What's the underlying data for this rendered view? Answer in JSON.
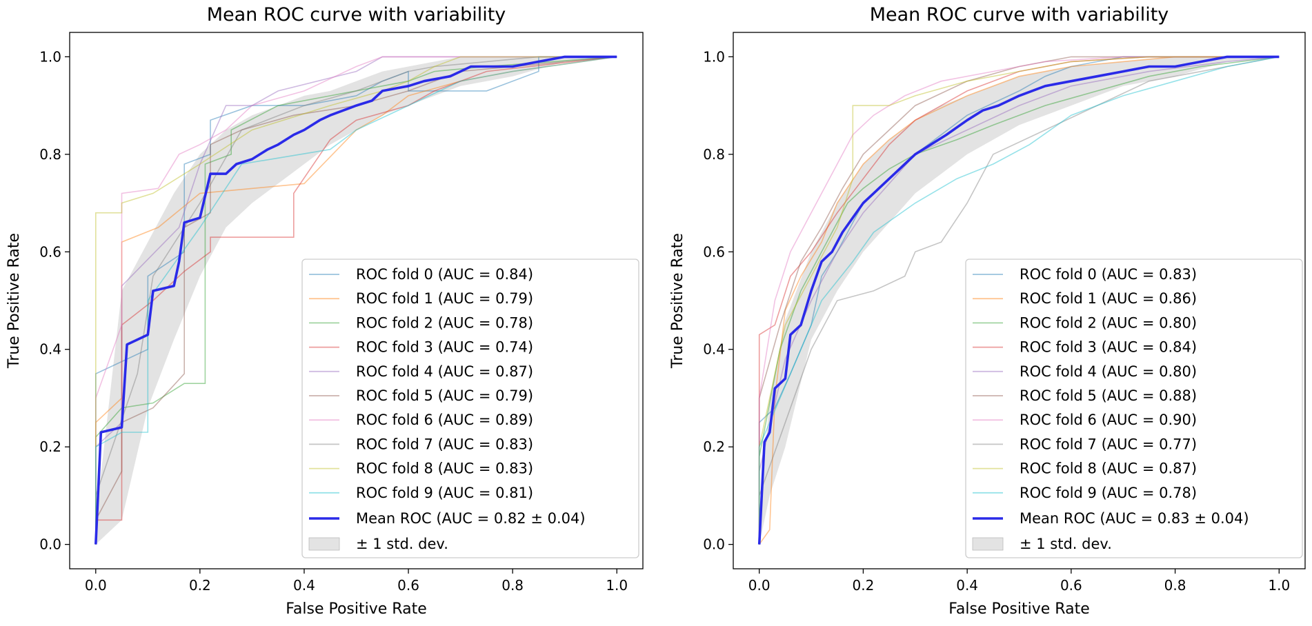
{
  "chart_data": [
    {
      "type": "line",
      "title": "Mean ROC curve with variability",
      "xlabel": "False Positive Rate",
      "ylabel": "True Positive Rate",
      "xlim": [
        -0.05,
        1.05
      ],
      "ylim": [
        -0.05,
        1.05
      ],
      "xticks": [
        "0.0",
        "0.2",
        "0.4",
        "0.6",
        "0.8",
        "1.0"
      ],
      "yticks": [
        "0.0",
        "0.2",
        "0.4",
        "0.6",
        "0.8",
        "1.0"
      ],
      "legend_position": "lower-right",
      "series": [
        {
          "name": "ROC fold 0 (AUC = 0.84)",
          "color": "#1f77b4",
          "x": [
            0,
            0,
            0.1,
            0.1,
            0.17,
            0.17,
            0.22,
            0.22,
            0.3,
            0.4,
            0.5,
            0.55,
            0.6,
            0.6,
            0.75,
            0.85,
            0.85,
            1.0
          ],
          "y": [
            0,
            0.35,
            0.4,
            0.55,
            0.6,
            0.78,
            0.8,
            0.87,
            0.9,
            0.9,
            0.92,
            0.95,
            0.97,
            0.93,
            0.93,
            0.97,
            1.0,
            1.0
          ]
        },
        {
          "name": "ROC fold 1 (AUC = 0.79)",
          "color": "#ff7f0e",
          "x": [
            0,
            0,
            0.05,
            0.05,
            0.12,
            0.2,
            0.4,
            0.5,
            0.55,
            0.6,
            0.7,
            0.8,
            1.0
          ],
          "y": [
            0,
            0.25,
            0.3,
            0.62,
            0.65,
            0.72,
            0.74,
            0.85,
            0.88,
            0.92,
            0.95,
            0.97,
            1.0
          ]
        },
        {
          "name": "ROC fold 2 (AUC = 0.78)",
          "color": "#2ca02c",
          "x": [
            0,
            0,
            0.05,
            0.11,
            0.17,
            0.21,
            0.21,
            0.26,
            0.26,
            0.35,
            0.45,
            0.6,
            0.65,
            0.75,
            1.0
          ],
          "y": [
            0,
            0.22,
            0.28,
            0.29,
            0.33,
            0.33,
            0.78,
            0.8,
            0.85,
            0.9,
            0.92,
            0.95,
            0.97,
            0.98,
            1.0
          ]
        },
        {
          "name": "ROC fold 3 (AUC = 0.74)",
          "color": "#d62728",
          "x": [
            0,
            0,
            0.05,
            0.05,
            0.11,
            0.17,
            0.17,
            0.22,
            0.22,
            0.38,
            0.38,
            0.45,
            0.5,
            0.6,
            0.65,
            0.75,
            1.0
          ],
          "y": [
            0,
            0.05,
            0.05,
            0.45,
            0.5,
            0.56,
            0.56,
            0.6,
            0.63,
            0.63,
            0.72,
            0.83,
            0.87,
            0.9,
            0.93,
            0.97,
            1.0
          ]
        },
        {
          "name": "ROC fold 4 (AUC = 0.87)",
          "color": "#9467bd",
          "x": [
            0,
            0,
            0.05,
            0.05,
            0.16,
            0.2,
            0.25,
            0.3,
            0.35,
            0.5,
            0.55,
            0.7,
            0.8,
            1.0
          ],
          "y": [
            0,
            0.2,
            0.25,
            0.53,
            0.65,
            0.78,
            0.9,
            0.9,
            0.93,
            0.97,
            1.0,
            1.0,
            1.0,
            1.0
          ]
        },
        {
          "name": "ROC fold 5 (AUC = 0.79)",
          "color": "#8c564b",
          "x": [
            0,
            0,
            0.05,
            0.05,
            0.11,
            0.17,
            0.17,
            0.22,
            0.22,
            0.28,
            0.38,
            0.5,
            0.6,
            0.7,
            1.0
          ],
          "y": [
            0,
            0.05,
            0.15,
            0.25,
            0.28,
            0.35,
            0.65,
            0.68,
            0.82,
            0.85,
            0.88,
            0.9,
            0.93,
            0.97,
            1.0
          ]
        },
        {
          "name": "ROC fold 6 (AUC = 0.89)",
          "color": "#e377c2",
          "x": [
            0,
            0,
            0.05,
            0.05,
            0.12,
            0.16,
            0.2,
            0.25,
            0.3,
            0.4,
            0.5,
            0.55,
            0.65,
            1.0
          ],
          "y": [
            0,
            0.3,
            0.45,
            0.72,
            0.73,
            0.8,
            0.82,
            0.85,
            0.9,
            0.93,
            0.98,
            1.0,
            1.0,
            1.0
          ]
        },
        {
          "name": "ROC fold 7 (AUC = 0.83)",
          "color": "#7f7f7f",
          "x": [
            0,
            0,
            0.08,
            0.11,
            0.17,
            0.2,
            0.28,
            0.4,
            0.5,
            0.6,
            0.65,
            0.85,
            1.0
          ],
          "y": [
            0,
            0.1,
            0.35,
            0.55,
            0.65,
            0.7,
            0.85,
            0.9,
            0.93,
            0.97,
            0.98,
            1.0,
            1.0
          ]
        },
        {
          "name": "ROC fold 8 (AUC = 0.83)",
          "color": "#bcbd22",
          "x": [
            0,
            0,
            0.05,
            0.05,
            0.11,
            0.2,
            0.3,
            0.45,
            0.55,
            0.6,
            0.65,
            0.7,
            1.0
          ],
          "y": [
            0,
            0.68,
            0.68,
            0.7,
            0.72,
            0.78,
            0.85,
            0.9,
            0.93,
            0.95,
            0.98,
            1.0,
            1.0
          ]
        },
        {
          "name": "ROC fold 9 (AUC = 0.81)",
          "color": "#17becf",
          "x": [
            0,
            0,
            0.05,
            0.1,
            0.1,
            0.2,
            0.28,
            0.45,
            0.5,
            0.6,
            0.7,
            0.8,
            1.0
          ],
          "y": [
            0,
            0.2,
            0.23,
            0.23,
            0.5,
            0.65,
            0.78,
            0.81,
            0.85,
            0.9,
            0.95,
            0.97,
            1.0
          ]
        }
      ],
      "mean": {
        "name": "Mean ROC (AUC = 0.82 ± 0.04)",
        "color": "#2a2ae8",
        "x": [
          0,
          0.01,
          0.05,
          0.06,
          0.1,
          0.11,
          0.15,
          0.16,
          0.17,
          0.2,
          0.22,
          0.25,
          0.27,
          0.3,
          0.33,
          0.35,
          0.38,
          0.4,
          0.43,
          0.45,
          0.5,
          0.53,
          0.55,
          0.6,
          0.63,
          0.68,
          0.72,
          0.8,
          0.85,
          0.9,
          0.95,
          1.0
        ],
        "y": [
          0,
          0.23,
          0.24,
          0.41,
          0.43,
          0.52,
          0.53,
          0.58,
          0.66,
          0.67,
          0.76,
          0.76,
          0.78,
          0.79,
          0.81,
          0.82,
          0.84,
          0.85,
          0.87,
          0.88,
          0.9,
          0.91,
          0.93,
          0.94,
          0.95,
          0.96,
          0.98,
          0.98,
          0.99,
          1.0,
          1.0,
          1.0
        ]
      },
      "band": {
        "name": "± 1 std. dev.",
        "color": "#d9d9d9",
        "x": [
          0,
          0.05,
          0.1,
          0.15,
          0.2,
          0.25,
          0.3,
          0.35,
          0.4,
          0.45,
          0.5,
          0.55,
          0.6,
          0.65,
          0.7,
          0.8,
          0.9,
          1.0
        ],
        "upper": [
          0.05,
          0.52,
          0.62,
          0.72,
          0.8,
          0.85,
          0.88,
          0.9,
          0.92,
          0.93,
          0.95,
          0.97,
          0.98,
          0.99,
          1.0,
          1.0,
          1.0,
          1.0
        ],
        "lower": [
          0.0,
          0.05,
          0.28,
          0.42,
          0.55,
          0.65,
          0.7,
          0.74,
          0.78,
          0.82,
          0.85,
          0.88,
          0.9,
          0.92,
          0.94,
          0.96,
          0.99,
          1.0
        ]
      }
    },
    {
      "type": "line",
      "title": "Mean ROC curve with variability",
      "xlabel": "False Positive Rate",
      "ylabel": "True Positive Rate",
      "xlim": [
        -0.05,
        1.05
      ],
      "ylim": [
        -0.05,
        1.05
      ],
      "xticks": [
        "0.0",
        "0.2",
        "0.4",
        "0.6",
        "0.8",
        "1.0"
      ],
      "yticks": [
        "0.0",
        "0.2",
        "0.4",
        "0.6",
        "0.8",
        "1.0"
      ],
      "legend_position": "lower-right",
      "series": [
        {
          "name": "ROC fold 0 (AUC = 0.83)",
          "color": "#1f77b4",
          "x": [
            0,
            0,
            0.03,
            0.06,
            0.1,
            0.12,
            0.15,
            0.2,
            0.25,
            0.3,
            0.4,
            0.5,
            0.55,
            0.6,
            0.7,
            0.85,
            1.0
          ],
          "y": [
            0,
            0.25,
            0.28,
            0.35,
            0.45,
            0.55,
            0.6,
            0.7,
            0.75,
            0.8,
            0.88,
            0.93,
            0.96,
            0.98,
            1.0,
            1.0,
            1.0
          ]
        },
        {
          "name": "ROC fold 1 (AUC = 0.86)",
          "color": "#ff7f0e",
          "x": [
            0,
            0.02,
            0.03,
            0.05,
            0.08,
            0.12,
            0.15,
            0.2,
            0.25,
            0.3,
            0.4,
            0.5,
            0.6,
            0.7,
            0.8,
            1.0
          ],
          "y": [
            0,
            0.03,
            0.3,
            0.48,
            0.55,
            0.62,
            0.7,
            0.78,
            0.83,
            0.87,
            0.92,
            0.96,
            0.98,
            0.99,
            1.0,
            1.0
          ]
        },
        {
          "name": "ROC fold 2 (AUC = 0.80)",
          "color": "#2ca02c",
          "x": [
            0,
            0,
            0.04,
            0.08,
            0.12,
            0.17,
            0.2,
            0.25,
            0.3,
            0.38,
            0.45,
            0.55,
            0.65,
            0.75,
            0.85,
            1.0
          ],
          "y": [
            0,
            0.18,
            0.4,
            0.52,
            0.6,
            0.7,
            0.73,
            0.77,
            0.8,
            0.83,
            0.86,
            0.9,
            0.93,
            0.96,
            0.98,
            1.0
          ]
        },
        {
          "name": "ROC fold 3 (AUC = 0.84)",
          "color": "#d62728",
          "x": [
            0,
            0,
            0.03,
            0.06,
            0.1,
            0.15,
            0.2,
            0.25,
            0.3,
            0.4,
            0.5,
            0.6,
            0.75,
            1.0
          ],
          "y": [
            0,
            0.43,
            0.45,
            0.55,
            0.6,
            0.68,
            0.75,
            0.82,
            0.87,
            0.93,
            0.97,
            0.99,
            1.0,
            1.0
          ]
        },
        {
          "name": "ROC fold 4 (AUC = 0.80)",
          "color": "#9467bd",
          "x": [
            0,
            0,
            0.05,
            0.1,
            0.15,
            0.2,
            0.25,
            0.3,
            0.4,
            0.5,
            0.6,
            0.75,
            0.9,
            1.0
          ],
          "y": [
            0,
            0.15,
            0.38,
            0.5,
            0.6,
            0.68,
            0.74,
            0.8,
            0.85,
            0.9,
            0.94,
            0.97,
            0.99,
            1.0
          ]
        },
        {
          "name": "ROC fold 5 (AUC = 0.88)",
          "color": "#8c564b",
          "x": [
            0,
            0,
            0.04,
            0.08,
            0.12,
            0.16,
            0.2,
            0.25,
            0.3,
            0.4,
            0.5,
            0.6,
            0.75,
            1.0
          ],
          "y": [
            0,
            0.3,
            0.45,
            0.58,
            0.65,
            0.73,
            0.8,
            0.85,
            0.9,
            0.95,
            0.98,
            1.0,
            1.0,
            1.0
          ]
        },
        {
          "name": "ROC fold 6 (AUC = 0.90)",
          "color": "#e377c2",
          "x": [
            0,
            0,
            0.03,
            0.06,
            0.09,
            0.12,
            0.15,
            0.18,
            0.22,
            0.28,
            0.35,
            0.45,
            0.55,
            0.7,
            1.0
          ],
          "y": [
            0,
            0.3,
            0.5,
            0.6,
            0.66,
            0.72,
            0.78,
            0.84,
            0.88,
            0.92,
            0.95,
            0.97,
            0.99,
            1.0,
            1.0
          ]
        },
        {
          "name": "ROC fold 7 (AUC = 0.77)",
          "color": "#7f7f7f",
          "x": [
            0,
            0,
            0.05,
            0.1,
            0.15,
            0.22,
            0.28,
            0.3,
            0.35,
            0.4,
            0.45,
            0.55,
            0.65,
            0.75,
            0.9,
            1.0
          ],
          "y": [
            0,
            0.1,
            0.25,
            0.4,
            0.5,
            0.52,
            0.55,
            0.6,
            0.62,
            0.7,
            0.8,
            0.85,
            0.9,
            0.95,
            0.98,
            1.0
          ]
        },
        {
          "name": "ROC fold 8 (AUC = 0.87)",
          "color": "#bcbd22",
          "x": [
            0,
            0,
            0.05,
            0.1,
            0.15,
            0.18,
            0.18,
            0.25,
            0.3,
            0.4,
            0.5,
            0.6,
            0.75,
            1.0
          ],
          "y": [
            0,
            0.2,
            0.45,
            0.55,
            0.65,
            0.75,
            0.9,
            0.9,
            0.92,
            0.95,
            0.97,
            0.99,
            1.0,
            1.0
          ]
        },
        {
          "name": "ROC fold 9 (AUC = 0.78)",
          "color": "#17becf",
          "x": [
            0,
            0,
            0.04,
            0.08,
            0.12,
            0.18,
            0.22,
            0.3,
            0.38,
            0.45,
            0.52,
            0.6,
            0.7,
            0.8,
            0.9,
            1.0
          ],
          "y": [
            0,
            0.2,
            0.3,
            0.4,
            0.5,
            0.58,
            0.64,
            0.7,
            0.75,
            0.78,
            0.82,
            0.88,
            0.92,
            0.95,
            0.98,
            1.0
          ]
        }
      ],
      "mean": {
        "name": "Mean ROC (AUC = 0.83 ± 0.04)",
        "color": "#2a2ae8",
        "x": [
          0,
          0.01,
          0.02,
          0.03,
          0.05,
          0.06,
          0.08,
          0.1,
          0.12,
          0.14,
          0.16,
          0.18,
          0.2,
          0.22,
          0.25,
          0.28,
          0.3,
          0.33,
          0.36,
          0.4,
          0.43,
          0.46,
          0.5,
          0.55,
          0.6,
          0.65,
          0.7,
          0.75,
          0.8,
          0.85,
          0.9,
          0.95,
          1.0
        ],
        "y": [
          0,
          0.21,
          0.23,
          0.32,
          0.34,
          0.43,
          0.45,
          0.52,
          0.58,
          0.6,
          0.64,
          0.67,
          0.7,
          0.72,
          0.75,
          0.78,
          0.8,
          0.82,
          0.84,
          0.87,
          0.89,
          0.9,
          0.92,
          0.94,
          0.95,
          0.96,
          0.97,
          0.98,
          0.98,
          0.99,
          1.0,
          1.0,
          1.0
        ]
      },
      "band": {
        "name": "± 1 std. dev.",
        "color": "#d9d9d9",
        "x": [
          0,
          0.02,
          0.05,
          0.1,
          0.15,
          0.2,
          0.25,
          0.3,
          0.35,
          0.4,
          0.45,
          0.5,
          0.6,
          0.7,
          0.8,
          0.9,
          1.0
        ],
        "upper": [
          0.05,
          0.3,
          0.46,
          0.6,
          0.7,
          0.78,
          0.83,
          0.87,
          0.9,
          0.92,
          0.94,
          0.96,
          0.98,
          0.99,
          1.0,
          1.0,
          1.0
        ],
        "lower": [
          0.0,
          0.1,
          0.2,
          0.42,
          0.52,
          0.6,
          0.66,
          0.72,
          0.76,
          0.8,
          0.83,
          0.86,
          0.9,
          0.94,
          0.96,
          0.99,
          1.0
        ]
      }
    }
  ]
}
